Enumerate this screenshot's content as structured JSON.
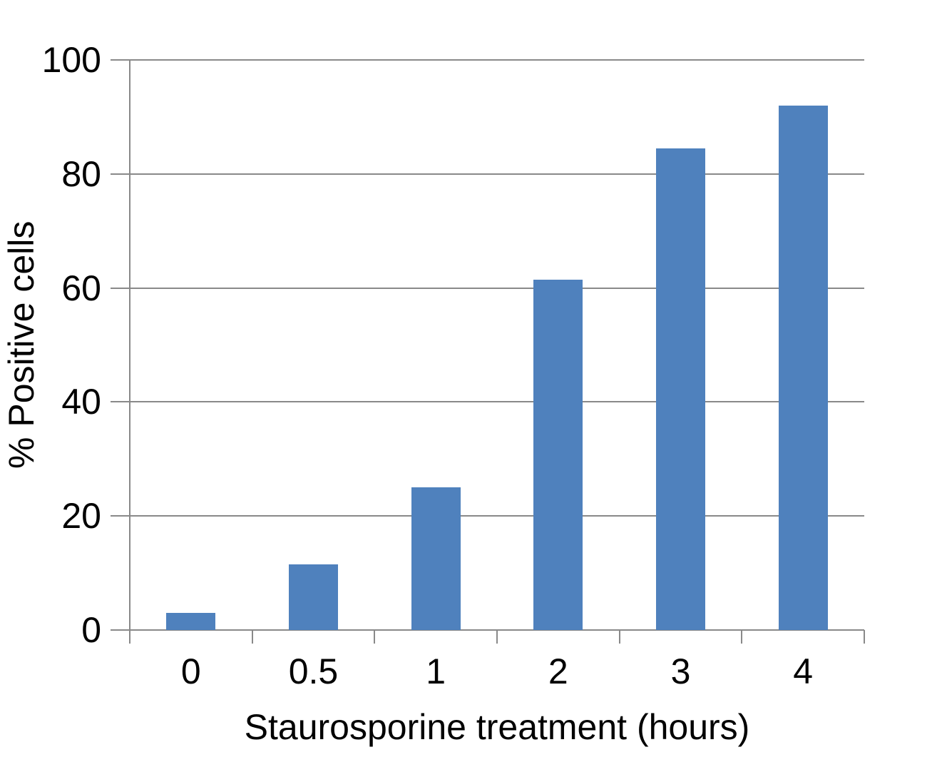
{
  "chart_data": {
    "type": "bar",
    "title": "",
    "xlabel": "Staurosporine treatment (hours)",
    "ylabel": "% Positive cells",
    "categories": [
      "0",
      "0.5",
      "1",
      "2",
      "3",
      "4"
    ],
    "values": [
      3,
      11.5,
      25,
      61.5,
      84.5,
      92
    ],
    "series_name": "% Positive cells",
    "ylim": [
      0,
      100
    ],
    "ytick_interval": 20,
    "ytick_labels": [
      "0",
      "20",
      "40",
      "60",
      "80",
      "100"
    ],
    "grid": true,
    "legend": "none",
    "colors": {
      "bar": "#4F81BD",
      "axis": "#898989",
      "gridline": "#898989",
      "text": "#000000",
      "background": "#FFFFFF"
    }
  }
}
